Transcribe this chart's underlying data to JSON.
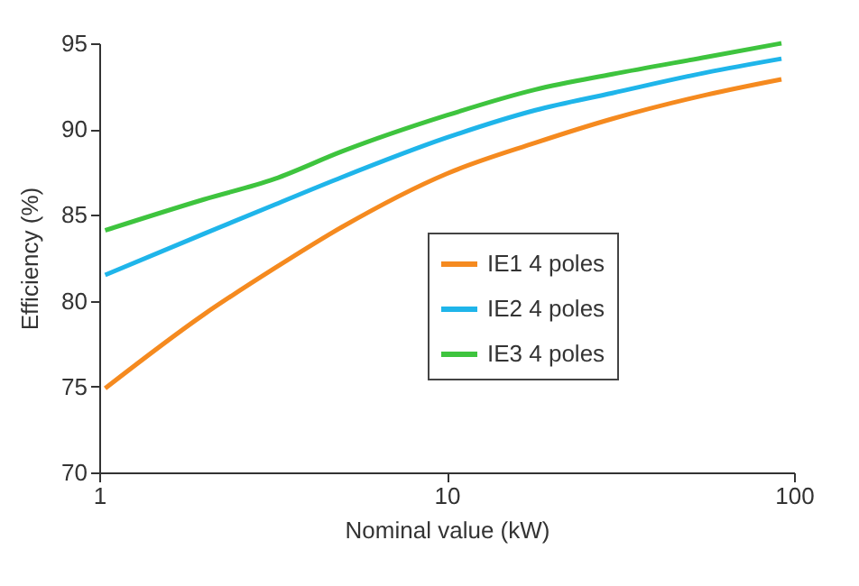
{
  "chart_data": {
    "type": "line",
    "xlabel": "Nominal value (kW)",
    "ylabel": "Efficiency (%)",
    "x": [
      1.04,
      2,
      3.2,
      5,
      10,
      18,
      30,
      56,
      92
    ],
    "series": [
      {
        "name": "IE1 4 poles",
        "color": "#f58a1f",
        "values": [
          74.9,
          79.2,
          81.9,
          84.3,
          87.4,
          89.2,
          90.6,
          92.0,
          92.9
        ]
      },
      {
        "name": "IE2 4 poles",
        "color": "#1fb5ea",
        "values": [
          81.5,
          83.9,
          85.6,
          87.2,
          89.5,
          91.1,
          92.1,
          93.3,
          94.1
        ]
      },
      {
        "name": "IE3 4 poles",
        "color": "#3ec43e",
        "values": [
          84.1,
          85.9,
          87.1,
          88.7,
          90.8,
          92.3,
          93.2,
          94.2,
          95.0
        ]
      }
    ],
    "xlim": [
      1,
      100
    ],
    "xticks": [
      1,
      10,
      100
    ],
    "ylim": [
      70,
      95
    ],
    "yticks": [
      70,
      75,
      80,
      85,
      90,
      95
    ],
    "log": "x",
    "grid": false,
    "legend": "right",
    "marker": "none",
    "line_style": "solid"
  }
}
